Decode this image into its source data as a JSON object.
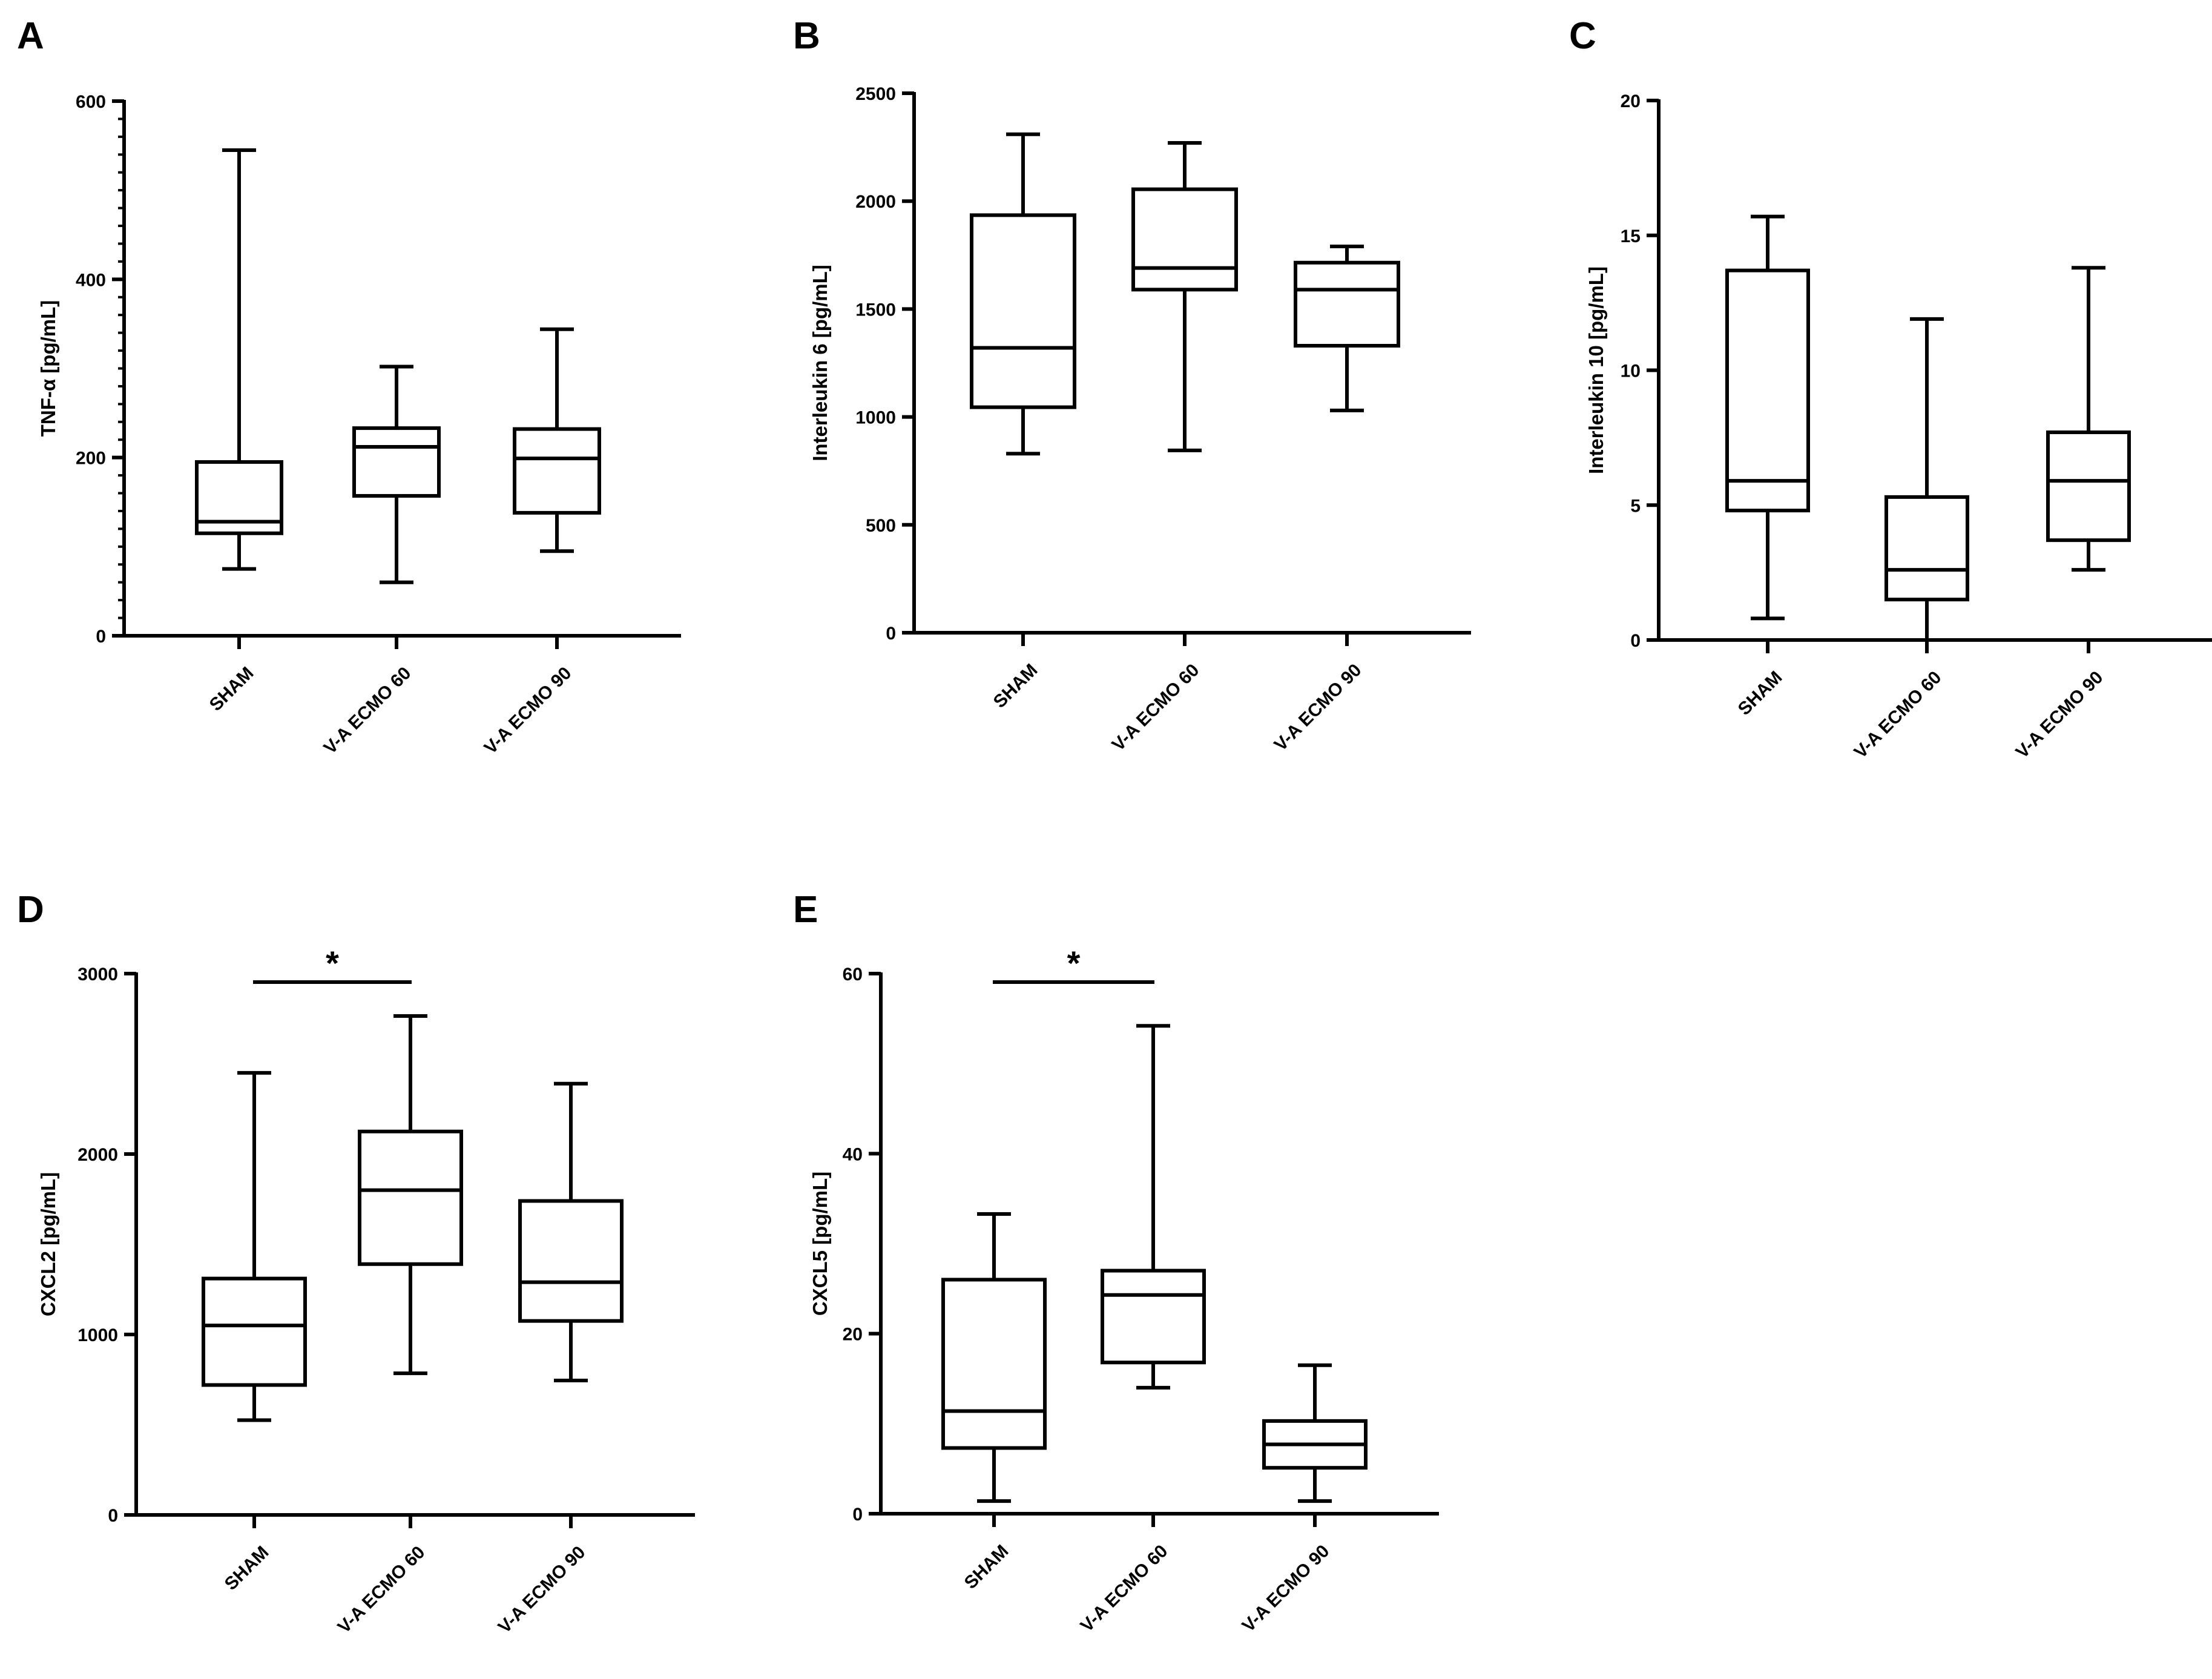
{
  "figure": {
    "background": "#ffffff",
    "ink": "#000000"
  },
  "chart_data": [
    {
      "panel": "A",
      "type": "boxplot",
      "ylabel": "TNF-α [pg/mL]",
      "ylim": [
        0,
        600
      ],
      "yticks": [
        0,
        200,
        400,
        600
      ],
      "ytick_labels": [
        "0",
        "200",
        "400",
        "600"
      ],
      "minor_ticks": true,
      "categories": [
        "SHAM",
        "V-A ECMO 60",
        "V-A ECMO 90"
      ],
      "boxes": [
        {
          "min": 75,
          "q1": 115,
          "median": 128,
          "q3": 195,
          "max": 545
        },
        {
          "min": 60,
          "q1": 157,
          "median": 212,
          "q3": 233,
          "max": 302
        },
        {
          "min": 95,
          "q1": 138,
          "median": 199,
          "q3": 232,
          "max": 344
        }
      ],
      "significance": []
    },
    {
      "panel": "B",
      "type": "boxplot",
      "ylabel": "Interleukin 6 [pg/mL]",
      "ylim": [
        0,
        2500
      ],
      "yticks": [
        0,
        500,
        1000,
        1500,
        2000,
        2500
      ],
      "ytick_labels": [
        "0",
        "500",
        "1000",
        "1500",
        "2000",
        "2500"
      ],
      "minor_ticks": false,
      "categories": [
        "SHAM",
        "V-A ECMO 60",
        "V-A ECMO 90"
      ],
      "boxes": [
        {
          "min": 830,
          "q1": 1045,
          "median": 1320,
          "q3": 1935,
          "max": 2310
        },
        {
          "min": 845,
          "q1": 1590,
          "median": 1690,
          "q3": 2055,
          "max": 2270
        },
        {
          "min": 1030,
          "q1": 1330,
          "median": 1590,
          "q3": 1715,
          "max": 1790
        }
      ],
      "significance": []
    },
    {
      "panel": "C",
      "type": "boxplot",
      "ylabel": "Interleukin 10 [pg/mL]",
      "ylim": [
        0,
        20
      ],
      "yticks": [
        0,
        5,
        10,
        15,
        20
      ],
      "ytick_labels": [
        "0",
        "5",
        "10",
        "15",
        "20"
      ],
      "minor_ticks": false,
      "categories": [
        "SHAM",
        "V-A ECMO 60",
        "V-A ECMO 90"
      ],
      "boxes": [
        {
          "min": 0.8,
          "q1": 4.8,
          "median": 5.9,
          "q3": 13.7,
          "max": 15.7
        },
        {
          "min": 0.0,
          "q1": 1.5,
          "median": 2.6,
          "q3": 5.3,
          "max": 11.9
        },
        {
          "min": 2.6,
          "q1": 3.7,
          "median": 5.9,
          "q3": 7.7,
          "max": 13.8
        }
      ],
      "significance": []
    },
    {
      "panel": "D",
      "type": "boxplot",
      "ylabel": "CXCL2 [pg/mL]",
      "ylim": [
        0,
        3000
      ],
      "yticks": [
        0,
        1000,
        2000,
        3000
      ],
      "ytick_labels": [
        "0",
        "1000",
        "2000",
        "3000"
      ],
      "minor_ticks": false,
      "categories": [
        "SHAM",
        "V-A ECMO 60",
        "V-A ECMO 90"
      ],
      "boxes": [
        {
          "min": 525,
          "q1": 720,
          "median": 1050,
          "q3": 1310,
          "max": 2450
        },
        {
          "min": 785,
          "q1": 1390,
          "median": 1800,
          "q3": 2125,
          "max": 2765
        },
        {
          "min": 745,
          "q1": 1075,
          "median": 1290,
          "q3": 1740,
          "max": 2390
        }
      ],
      "significance": [
        {
          "from": 0,
          "to": 1,
          "label": "*"
        }
      ]
    },
    {
      "panel": "E",
      "type": "boxplot",
      "ylabel": "CXCL5 [pg/mL]",
      "ylim": [
        0,
        60
      ],
      "yticks": [
        0,
        20,
        40,
        60
      ],
      "ytick_labels": [
        "0",
        "20",
        "40",
        "60"
      ],
      "minor_ticks": false,
      "categories": [
        "SHAM",
        "V-A ECMO 60",
        "V-A ECMO 90"
      ],
      "boxes": [
        {
          "min": 1.4,
          "q1": 7.3,
          "median": 11.4,
          "q3": 26.0,
          "max": 33.3
        },
        {
          "min": 14.0,
          "q1": 16.8,
          "median": 24.3,
          "q3": 27.0,
          "max": 54.2
        },
        {
          "min": 1.4,
          "q1": 5.1,
          "median": 7.7,
          "q3": 10.3,
          "max": 16.5
        }
      ],
      "significance": [
        {
          "from": 0,
          "to": 1,
          "label": "*"
        }
      ]
    }
  ]
}
